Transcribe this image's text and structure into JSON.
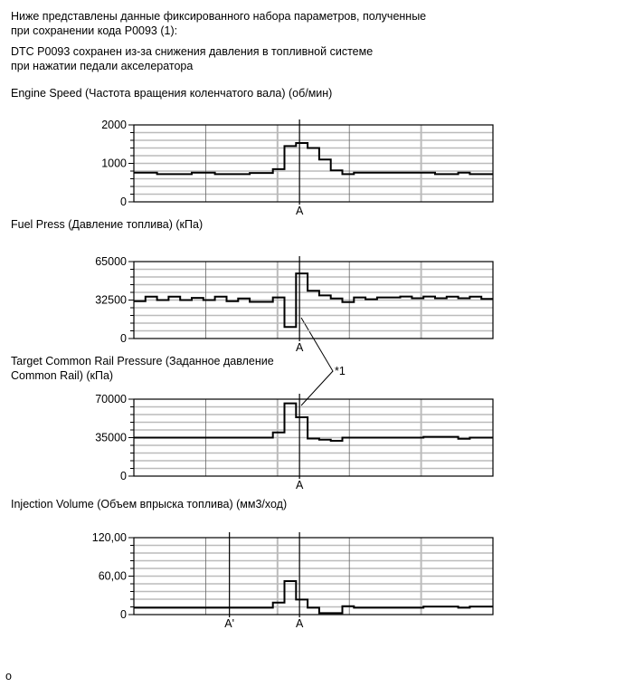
{
  "intro": {
    "line1": "Ниже представлены данные фиксированного набора параметров, полученные",
    "line2": "при сохранении кода P0093 (1):",
    "line3": "DTC P0093 сохранен из-за снижения давления в топливной системе",
    "line4": "при нажатии педали акселератора"
  },
  "callout": "*1",
  "footer": "o",
  "chart_data": [
    {
      "type": "line",
      "step": true,
      "title": "Engine Speed (Частота вращения коленчатого вала) (об/мин)",
      "ylim": [
        0,
        2000
      ],
      "yticks": [
        "0",
        "1000",
        "2000"
      ],
      "markers": [
        {
          "label": "A",
          "x": 14.3
        }
      ],
      "values": [
        760,
        760,
        720,
        720,
        720,
        760,
        760,
        720,
        720,
        720,
        750,
        750,
        850,
        1450,
        1530,
        1400,
        1100,
        820,
        720,
        760,
        760,
        760,
        760,
        760,
        760,
        760,
        720,
        720,
        760,
        720,
        720
      ]
    },
    {
      "type": "line",
      "step": true,
      "title": "Fuel Press (Давление топлива) (кПа)",
      "ylim": [
        0,
        65000
      ],
      "yticks": [
        "0",
        "32500",
        "65000"
      ],
      "markers": [
        {
          "label": "A",
          "x": 14.3
        }
      ],
      "values": [
        31500,
        35300,
        32500,
        35300,
        32500,
        34300,
        32500,
        35300,
        31500,
        33800,
        31000,
        31000,
        34700,
        9700,
        55000,
        40300,
        36400,
        33900,
        30800,
        34700,
        33200,
        34700,
        34700,
        35500,
        34000,
        35500,
        34000,
        35300,
        34000,
        35300,
        33500
      ]
    },
    {
      "type": "line",
      "step": true,
      "title": "Target Common Rail Pressure (Заданное давление",
      "title2": "Common Rail) (кПа)",
      "ylim": [
        0,
        70000
      ],
      "yticks": [
        "0",
        "35000",
        "70000"
      ],
      "markers": [
        {
          "label": "A",
          "x": 14.3
        }
      ],
      "values": [
        35000,
        35000,
        35000,
        35000,
        35000,
        35000,
        35000,
        35000,
        35000,
        35000,
        35000,
        35000,
        39700,
        66200,
        53500,
        34200,
        33200,
        32100,
        35000,
        35000,
        35000,
        35000,
        35000,
        35000,
        35000,
        35700,
        35700,
        35700,
        34000,
        35000,
        35000
      ]
    },
    {
      "type": "line",
      "step": true,
      "title": "Injection Volume (Объем впрыска топлива) (мм3/ход)",
      "ylim": [
        0,
        120
      ],
      "yticks": [
        "0",
        "60,00",
        "120,00"
      ],
      "markers": [
        {
          "label": "A'",
          "x": 8.25
        },
        {
          "label": "A",
          "x": 14.3
        }
      ],
      "values": [
        10.7,
        10.7,
        10.7,
        10.7,
        10.7,
        10.7,
        10.7,
        10.7,
        10.7,
        10.7,
        10.7,
        10.7,
        18.7,
        52.3,
        23.4,
        10.7,
        2.3,
        2.3,
        13,
        10.7,
        10.7,
        10.7,
        10.7,
        10.7,
        10.7,
        12.6,
        12.6,
        12.6,
        10.7,
        12.6,
        12.6
      ]
    }
  ]
}
